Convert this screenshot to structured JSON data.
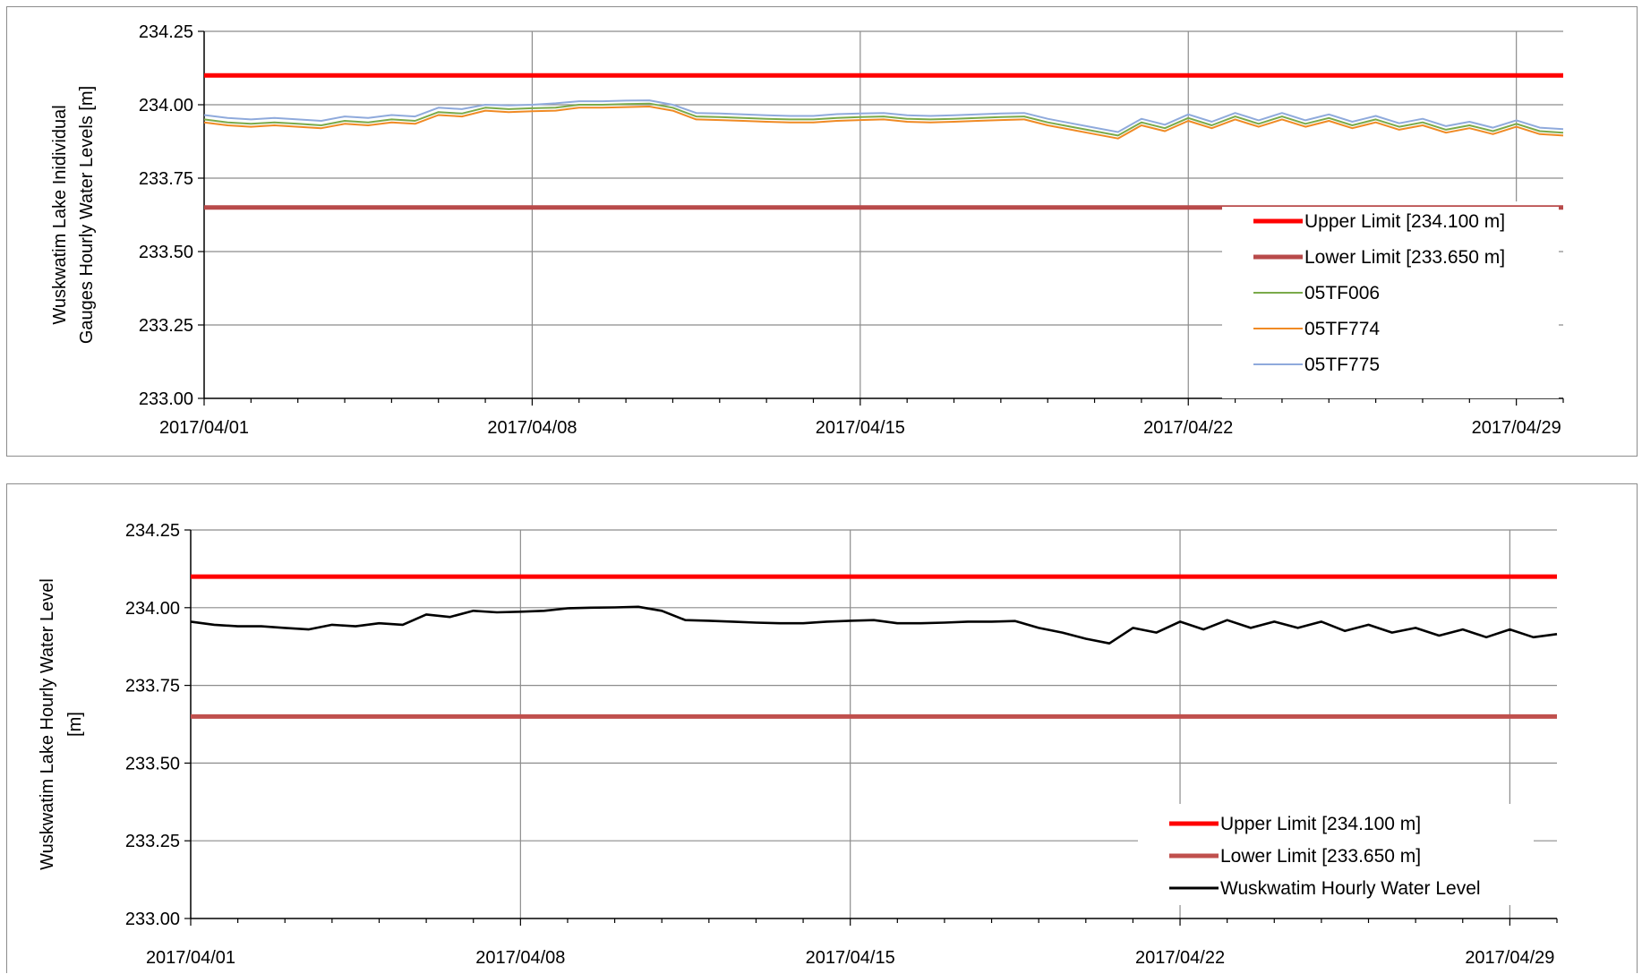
{
  "chart_data": [
    {
      "type": "line",
      "title": "",
      "ylabel_lines": [
        "Wuskwatim Lake Inidividual",
        "Gauges Hourly Water Levels [m]"
      ],
      "xlabel": "",
      "x_ticks": [
        "2017/04/01",
        "2017/04/08",
        "2017/04/15",
        "2017/04/22",
        "2017/04/29"
      ],
      "x_tick_days": [
        0,
        7,
        14,
        21,
        28
      ],
      "xlim_days": [
        0,
        29
      ],
      "y_ticks": [
        "233.00",
        "233.25",
        "233.50",
        "233.75",
        "234.00",
        "234.25"
      ],
      "ylim": [
        233.0,
        234.25
      ],
      "grid": true,
      "legend_position": "bottom-right",
      "reference_lines": [
        {
          "name": "Upper Limit [234.100 m]",
          "value": 234.1,
          "color": "#ff0000"
        },
        {
          "name": "Lower Limit [233.650 m]",
          "value": 233.65,
          "color": "#b84a4a"
        }
      ],
      "series": [
        {
          "name": "05TF006",
          "color": "#7aaa4a",
          "x": [
            0,
            0.5,
            1,
            1.5,
            2,
            2.5,
            3,
            3.5,
            4,
            4.5,
            5,
            5.5,
            6,
            6.5,
            7,
            7.5,
            8,
            8.5,
            9,
            9.5,
            10,
            10.5,
            11,
            11.5,
            12,
            12.5,
            13,
            13.5,
            14,
            14.5,
            15,
            15.5,
            16,
            16.5,
            17,
            17.5,
            18,
            18.5,
            19,
            19.5,
            20,
            20.5,
            21,
            21.5,
            22,
            22.5,
            23,
            23.5,
            24,
            24.5,
            25,
            25.5,
            26,
            26.5,
            27,
            27.5,
            28,
            28.5,
            29
          ],
          "y": [
            233.95,
            233.94,
            233.935,
            233.94,
            233.935,
            233.93,
            233.945,
            233.94,
            233.95,
            233.945,
            233.975,
            233.97,
            233.99,
            233.985,
            233.988,
            233.99,
            234.0,
            234.0,
            234.002,
            234.004,
            233.99,
            233.96,
            233.958,
            233.955,
            233.952,
            233.95,
            233.95,
            233.955,
            233.958,
            233.96,
            233.952,
            233.95,
            233.952,
            233.955,
            233.958,
            233.96,
            233.94,
            233.925,
            233.91,
            233.895,
            233.94,
            233.92,
            233.955,
            233.93,
            233.96,
            233.935,
            233.96,
            233.935,
            233.955,
            233.93,
            233.95,
            233.925,
            233.94,
            233.915,
            233.93,
            233.91,
            233.935,
            233.91,
            233.905
          ]
        },
        {
          "name": "05TF774",
          "color": "#f08a24",
          "x": [
            0,
            0.5,
            1,
            1.5,
            2,
            2.5,
            3,
            3.5,
            4,
            4.5,
            5,
            5.5,
            6,
            6.5,
            7,
            7.5,
            8,
            8.5,
            9,
            9.5,
            10,
            10.5,
            11,
            11.5,
            12,
            12.5,
            13,
            13.5,
            14,
            14.5,
            15,
            15.5,
            16,
            16.5,
            17,
            17.5,
            18,
            18.5,
            19,
            19.5,
            20,
            20.5,
            21,
            21.5,
            22,
            22.5,
            23,
            23.5,
            24,
            24.5,
            25,
            25.5,
            26,
            26.5,
            27,
            27.5,
            28,
            28.5,
            29
          ],
          "y": [
            233.94,
            233.93,
            233.925,
            233.93,
            233.925,
            233.92,
            233.935,
            233.93,
            233.94,
            233.935,
            233.965,
            233.96,
            233.98,
            233.975,
            233.978,
            233.98,
            233.99,
            233.99,
            233.992,
            233.994,
            233.98,
            233.95,
            233.948,
            233.945,
            233.942,
            233.94,
            233.94,
            233.945,
            233.948,
            233.95,
            233.942,
            233.94,
            233.942,
            233.945,
            233.948,
            233.95,
            233.93,
            233.915,
            233.9,
            233.885,
            233.93,
            233.91,
            233.945,
            233.92,
            233.95,
            233.925,
            233.95,
            233.925,
            233.945,
            233.92,
            233.94,
            233.915,
            233.93,
            233.905,
            233.92,
            233.9,
            233.925,
            233.9,
            233.895
          ]
        },
        {
          "name": "05TF775",
          "color": "#8faadc",
          "x": [
            0,
            0.5,
            1,
            1.5,
            2,
            2.5,
            3,
            3.5,
            4,
            4.5,
            5,
            5.5,
            6,
            6.5,
            7,
            7.5,
            8,
            8.5,
            9,
            9.5,
            10,
            10.5,
            11,
            11.5,
            12,
            12.5,
            13,
            13.5,
            14,
            14.5,
            15,
            15.5,
            16,
            16.5,
            17,
            17.5,
            18,
            18.5,
            19,
            19.5,
            20,
            20.5,
            21,
            21.5,
            22,
            22.5,
            23,
            23.5,
            24,
            24.5,
            25,
            25.5,
            26,
            26.5,
            27,
            27.5,
            28,
            28.5,
            29
          ],
          "y": [
            233.965,
            233.955,
            233.95,
            233.955,
            233.95,
            233.945,
            233.96,
            233.955,
            233.965,
            233.96,
            233.99,
            233.985,
            234.0,
            233.998,
            234.0,
            234.005,
            234.012,
            234.012,
            234.014,
            234.015,
            234.0,
            233.972,
            233.97,
            233.967,
            233.964,
            233.962,
            233.962,
            233.968,
            233.97,
            233.972,
            233.964,
            233.962,
            233.964,
            233.967,
            233.97,
            233.972,
            233.952,
            233.937,
            233.922,
            233.907,
            233.952,
            233.932,
            233.967,
            233.942,
            233.972,
            233.947,
            233.972,
            233.947,
            233.967,
            233.942,
            233.962,
            233.937,
            233.952,
            233.927,
            233.942,
            233.922,
            233.947,
            233.922,
            233.917
          ]
        }
      ]
    },
    {
      "type": "line",
      "title": "",
      "ylabel_lines": [
        "Wuskwatim Lake Hourly Water Level",
        "[m]"
      ],
      "xlabel": "",
      "x_ticks": [
        "2017/04/01",
        "2017/04/08",
        "2017/04/15",
        "2017/04/22",
        "2017/04/29"
      ],
      "x_tick_days": [
        0,
        7,
        14,
        21,
        28
      ],
      "xlim_days": [
        0,
        29
      ],
      "y_ticks": [
        "233.00",
        "233.25",
        "233.50",
        "233.75",
        "234.00",
        "234.25"
      ],
      "ylim": [
        233.0,
        234.25
      ],
      "grid": true,
      "legend_position": "bottom-right",
      "reference_lines": [
        {
          "name": "Upper Limit [234.100 m]",
          "value": 234.1,
          "color": "#ff0000"
        },
        {
          "name": "Lower Limit [233.650 m]",
          "value": 233.65,
          "color": "#c0504d"
        }
      ],
      "series": [
        {
          "name": "Wuskwatim Hourly Water Level",
          "color": "#000000",
          "x": [
            0,
            0.5,
            1,
            1.5,
            2,
            2.5,
            3,
            3.5,
            4,
            4.5,
            5,
            5.5,
            6,
            6.5,
            7,
            7.5,
            8,
            8.5,
            9,
            9.5,
            10,
            10.5,
            11,
            11.5,
            12,
            12.5,
            13,
            13.5,
            14,
            14.5,
            15,
            15.5,
            16,
            16.5,
            17,
            17.5,
            18,
            18.5,
            19,
            19.5,
            20,
            20.5,
            21,
            21.5,
            22,
            22.5,
            23,
            23.5,
            24,
            24.5,
            25,
            25.5,
            26,
            26.5,
            27,
            27.5,
            28,
            28.5,
            29
          ],
          "y": [
            233.955,
            233.945,
            233.94,
            233.94,
            233.935,
            233.93,
            233.945,
            233.94,
            233.95,
            233.945,
            233.978,
            233.97,
            233.99,
            233.985,
            233.987,
            233.99,
            233.998,
            234.0,
            234.001,
            234.003,
            233.99,
            233.96,
            233.958,
            233.955,
            233.952,
            233.95,
            233.95,
            233.955,
            233.958,
            233.96,
            233.95,
            233.95,
            233.952,
            233.955,
            233.955,
            233.957,
            233.935,
            233.92,
            233.9,
            233.885,
            233.935,
            233.92,
            233.955,
            233.93,
            233.96,
            233.935,
            233.955,
            233.935,
            233.955,
            233.925,
            233.945,
            233.92,
            233.935,
            233.91,
            233.93,
            233.905,
            233.93,
            233.905,
            233.915
          ]
        }
      ]
    }
  ]
}
